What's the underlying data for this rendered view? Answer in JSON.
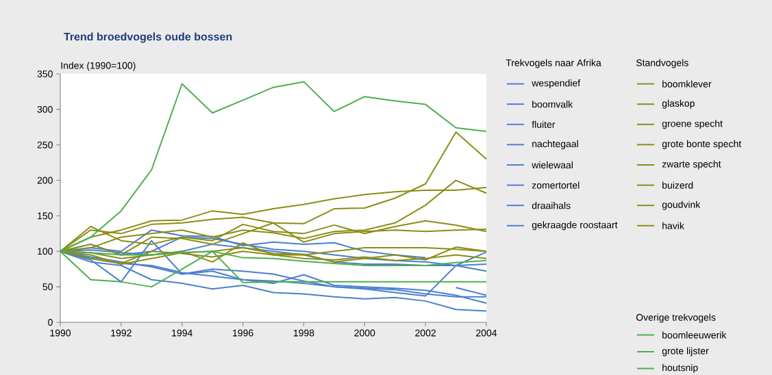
{
  "chart_data": {
    "type": "line",
    "title": "Trend broedvogels oude bossen",
    "ylabel": "Index (1990=100)",
    "annotations": [
      "Trekvogels naar Afrika",
      "Standvogels",
      "Overige trekvogels"
    ],
    "x": [
      1990,
      1991,
      1992,
      1993,
      1994,
      1995,
      1996,
      1997,
      1998,
      1999,
      2000,
      2001,
      2002,
      2003,
      2004
    ],
    "xlim": [
      1990,
      2004
    ],
    "ylim": [
      0,
      350
    ],
    "xticks": [
      1990,
      1992,
      1994,
      1996,
      1998,
      2000,
      2002,
      2004
    ],
    "yticks": [
      0,
      50,
      100,
      150,
      200,
      250,
      300,
      350
    ],
    "legend": "right",
    "series": [
      {
        "name": "wespendief",
        "color": "#4a7fcf",
        "values": [
          100,
          92,
          85,
          78,
          68,
          72,
          60,
          55,
          67,
          52,
          50,
          48,
          45,
          38,
          27
        ]
      },
      {
        "name": "boomvalk",
        "color": "#4a7fcf",
        "values": [
          100,
          105,
          100,
          130,
          122,
          121,
          108,
          113,
          110,
          112,
          100,
          95,
          91,
          null,
          null
        ]
      },
      {
        "name": "fluiter",
        "color": "#4a7fcf",
        "values": [
          100,
          88,
          57,
          115,
          68,
          75,
          72,
          68,
          58,
          50,
          47,
          42,
          37,
          80,
          99
        ]
      },
      {
        "name": "nachtegaal",
        "color": "#4a7fcf",
        "values": [
          100,
          102,
          98,
          95,
          100,
          110,
          105,
          100,
          95,
          85,
          82,
          82,
          80,
          80,
          82
        ]
      },
      {
        "name": "wielewaal",
        "color": "#4a7fcf",
        "values": [
          100,
          110,
          95,
          100,
          120,
          118,
          110,
          103,
          100,
          95,
          90,
          87,
          85,
          80,
          72
        ]
      },
      {
        "name": "zomertortel",
        "color": "#4a7fcf",
        "values": [
          100,
          85,
          80,
          60,
          55,
          47,
          52,
          42,
          40,
          36,
          33,
          35,
          30,
          18,
          16
        ]
      },
      {
        "name": "draaihals",
        "color": "#4a7fcf",
        "values": [
          null,
          null,
          null,
          null,
          null,
          null,
          null,
          null,
          null,
          null,
          null,
          null,
          null,
          49,
          38
        ]
      },
      {
        "name": "gekraagde roostaart",
        "color": "#4a7fcf",
        "values": [
          100,
          90,
          83,
          80,
          70,
          65,
          60,
          58,
          55,
          50,
          48,
          46,
          40,
          36,
          36
        ]
      },
      {
        "name": "boomklever",
        "color": "#8c8c14",
        "values": [
          100,
          120,
          130,
          143,
          144,
          157,
          152,
          160,
          166,
          174,
          180,
          184,
          186,
          186,
          190
        ]
      },
      {
        "name": "glaskop",
        "color": "#8c8c14",
        "values": [
          100,
          130,
          125,
          138,
          140,
          145,
          148,
          140,
          139,
          160,
          161,
          175,
          195,
          268,
          230
        ]
      },
      {
        "name": "groene specht",
        "color": "#8c8c14",
        "values": [
          100,
          105,
          120,
          125,
          130,
          120,
          130,
          126,
          118,
          128,
          130,
          140,
          165,
          200,
          182
        ]
      },
      {
        "name": "grote bonte specht",
        "color": "#8c8c14",
        "values": [
          100,
          135,
          115,
          110,
          120,
          115,
          138,
          128,
          125,
          137,
          125,
          135,
          143,
          137,
          128
        ]
      },
      {
        "name": "zwarte specht",
        "color": "#8c8c14",
        "values": [
          100,
          110,
          95,
          120,
          118,
          110,
          125,
          140,
          113,
          125,
          128,
          130,
          128,
          130,
          131
        ]
      },
      {
        "name": "buizerd",
        "color": "#8c8c14",
        "values": [
          100,
          98,
          90,
          95,
          100,
          85,
          112,
          95,
          95,
          100,
          105,
          105,
          105,
          103,
          100
        ]
      },
      {
        "name": "goudvink",
        "color": "#8c8c14",
        "values": [
          100,
          95,
          82,
          90,
          98,
          100,
          105,
          97,
          96,
          85,
          90,
          95,
          88,
          106,
          100
        ]
      },
      {
        "name": "havik",
        "color": "#8c8c14",
        "values": [
          100,
          90,
          83,
          100,
          97,
          92,
          100,
          95,
          90,
          88,
          92,
          87,
          90,
          95,
          90
        ]
      },
      {
        "name": "boomleeuwerik",
        "color": "#4caf50",
        "values": [
          100,
          120,
          157,
          215,
          336,
          295,
          313,
          331,
          339,
          297,
          318,
          312,
          307,
          274,
          269
        ]
      },
      {
        "name": "grote lijster",
        "color": "#4caf50",
        "values": [
          100,
          98,
          95,
          95,
          98,
          100,
          91,
          90,
          86,
          83,
          80,
          80,
          80,
          84,
          87
        ]
      },
      {
        "name": "houtsnip",
        "color": "#4caf50",
        "values": [
          100,
          60,
          57,
          50,
          75,
          100,
          56,
          57,
          57,
          57,
          57,
          57,
          57,
          57,
          57
        ]
      }
    ]
  }
}
